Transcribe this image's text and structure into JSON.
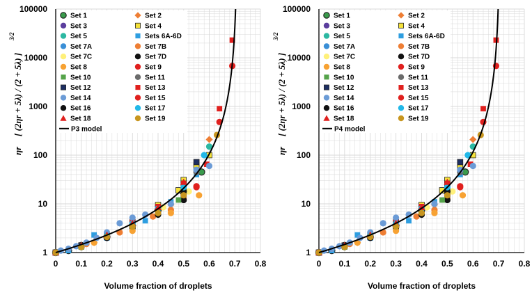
{
  "chart_data": [
    {
      "type": "scatter",
      "xlabel": "Volume fraction of droplets",
      "ylabel_lines": [
        "ηr",
        "[ (2ηr + 5λ) / (2 + 5λ) ]",
        "3/2"
      ],
      "ylabel": "ηr [(2ηr + 5λ)/(2 + 5λ)]^(3/2)",
      "xlim": [
        0,
        0.8
      ],
      "ylim": [
        1,
        100000
      ],
      "yscale": "log",
      "x_tick_labels": [
        "0",
        "0.1",
        "0.2",
        "0.3",
        "0.4",
        "0.5",
        "0.6",
        "0.7",
        "0.8"
      ],
      "y_tick_labels": [
        "1",
        "10",
        "100",
        "1000",
        "10000",
        "100000"
      ],
      "grid": true,
      "legend_location": "top-left",
      "model": {
        "name": "P3 model",
        "max_packing": 0.71,
        "exponent": 2.5
      },
      "series": [
        {
          "name": "Set 1",
          "marker": "circle-outline",
          "color": "#3a9b4c",
          "points": [
            [
              0,
              1
            ],
            [
              0.05,
              1.1
            ],
            [
              0.1,
              1.4
            ],
            [
              0.2,
              2.1
            ],
            [
              0.3,
              3.6
            ],
            [
              0.4,
              7.5
            ],
            [
              0.5,
              17
            ],
            [
              0.57,
              45
            ]
          ]
        },
        {
          "name": "Set 2",
          "marker": "diamond",
          "color": "#ee7e34",
          "points": [
            [
              0,
              1
            ],
            [
              0.15,
              1.6
            ],
            [
              0.3,
              3.3
            ],
            [
              0.45,
              9.5
            ],
            [
              0.6,
              210
            ]
          ]
        },
        {
          "name": "Set 3",
          "marker": "circle",
          "color": "#5b3e9e",
          "points": [
            [
              0,
              1
            ],
            [
              0.1,
              1.3
            ],
            [
              0.2,
              2.0
            ],
            [
              0.3,
              3.5
            ],
            [
              0.4,
              7.2
            ],
            [
              0.5,
              19
            ]
          ]
        },
        {
          "name": "Set 4",
          "marker": "square",
          "color": "#f5e23a",
          "points": [
            [
              0,
              1
            ],
            [
              0.1,
              1.4
            ],
            [
              0.2,
              2.3
            ],
            [
              0.3,
              4.2
            ],
            [
              0.4,
              9.5
            ],
            [
              0.48,
              19
            ],
            [
              0.5,
              31
            ],
            [
              0.55,
              60
            ],
            [
              0.6,
              100
            ]
          ]
        },
        {
          "name": "Set 5",
          "marker": "circle",
          "color": "#2cb8a2",
          "points": [
            [
              0,
              1
            ],
            [
              0.1,
              1.3
            ],
            [
              0.2,
              2.1
            ],
            [
              0.3,
              3.7
            ],
            [
              0.4,
              8.0
            ],
            [
              0.5,
              20
            ],
            [
              0.6,
              150
            ]
          ]
        },
        {
          "name": "Sets 6A-6D",
          "marker": "square",
          "color": "#2e9ee0",
          "points": [
            [
              0,
              1
            ],
            [
              0.05,
              1.1
            ],
            [
              0.1,
              1.3
            ],
            [
              0.15,
              2.3
            ],
            [
              0.2,
              2.0
            ],
            [
              0.3,
              3.4
            ],
            [
              0.35,
              4.5
            ],
            [
              0.4,
              6.8
            ],
            [
              0.45,
              11
            ],
            [
              0.5,
              22
            ],
            [
              0.55,
              40
            ]
          ]
        },
        {
          "name": "Set 7A",
          "marker": "circle",
          "color": "#3a8fd6",
          "points": [
            [
              0,
              1
            ],
            [
              0.1,
              1.3
            ],
            [
              0.2,
              2.0
            ],
            [
              0.3,
              3.3
            ],
            [
              0.4,
              6.5
            ],
            [
              0.5,
              14
            ]
          ]
        },
        {
          "name": "Set 7B",
          "marker": "circle",
          "color": "#ee7e34",
          "points": [
            [
              0,
              1
            ],
            [
              0.12,
              1.5
            ],
            [
              0.25,
              2.6
            ],
            [
              0.38,
              5.5
            ],
            [
              0.45,
              7.5
            ],
            [
              0.5,
              13
            ]
          ]
        },
        {
          "name": "Set 7C",
          "marker": "circle",
          "color": "#fff07a",
          "points": [
            [
              0,
              1
            ],
            [
              0.1,
              1.4
            ],
            [
              0.2,
              2.2
            ],
            [
              0.3,
              3.8
            ],
            [
              0.42,
              8.5
            ],
            [
              0.52,
              18
            ]
          ]
        },
        {
          "name": "Set 7D",
          "marker": "circle",
          "color": "#111111",
          "points": [
            [
              0,
              1
            ],
            [
              0.1,
              1.3
            ],
            [
              0.2,
              2.0
            ],
            [
              0.3,
              3.2
            ],
            [
              0.4,
              6.0
            ],
            [
              0.5,
              12
            ]
          ]
        },
        {
          "name": "Set 8",
          "marker": "circle",
          "color": "#f7a233",
          "points": [
            [
              0,
              1
            ],
            [
              0.15,
              1.6
            ],
            [
              0.3,
              2.8
            ],
            [
              0.45,
              6.5
            ],
            [
              0.56,
              15
            ]
          ]
        },
        {
          "name": "Set 9",
          "marker": "circle",
          "color": "#e0201e",
          "points": [
            [
              0,
              1
            ],
            [
              0.2,
              2.2
            ],
            [
              0.4,
              8.0
            ],
            [
              0.55,
              22
            ],
            [
              0.64,
              480
            ],
            [
              0.69,
              6800
            ]
          ]
        },
        {
          "name": "Set 10",
          "marker": "square",
          "color": "#55a34a",
          "points": [
            [
              0,
              1
            ],
            [
              0.1,
              1.3
            ],
            [
              0.2,
              2.2
            ],
            [
              0.3,
              3.6
            ],
            [
              0.4,
              7.0
            ],
            [
              0.48,
              12
            ]
          ]
        },
        {
          "name": "Set 11",
          "marker": "circle",
          "color": "#6b6b6b",
          "points": [
            [
              0,
              1
            ],
            [
              0.1,
              1.3
            ],
            [
              0.2,
              2.1
            ],
            [
              0.3,
              3.5
            ],
            [
              0.4,
              7.5
            ],
            [
              0.5,
              20
            ],
            [
              0.55,
              45
            ]
          ]
        },
        {
          "name": "Set 12",
          "marker": "square",
          "color": "#1e2f63",
          "points": [
            [
              0,
              1
            ],
            [
              0.1,
              1.4
            ],
            [
              0.2,
              2.1
            ],
            [
              0.3,
              3.9
            ],
            [
              0.4,
              8.2
            ],
            [
              0.5,
              26
            ],
            [
              0.55,
              72
            ]
          ]
        },
        {
          "name": "Set 13",
          "marker": "square",
          "color": "#e0201e",
          "points": [
            [
              0,
              1
            ],
            [
              0.2,
              2.4
            ],
            [
              0.3,
              4.3
            ],
            [
              0.4,
              8.8
            ],
            [
              0.5,
              26
            ],
            [
              0.59,
              65
            ],
            [
              0.64,
              900
            ],
            [
              0.69,
              23000
            ]
          ]
        },
        {
          "name": "Set 14",
          "marker": "circle",
          "color": "#6b9bd6",
          "points": [
            [
              0.02,
              1.1
            ],
            [
              0.05,
              1.2
            ],
            [
              0.08,
              1.35
            ],
            [
              0.12,
              1.6
            ],
            [
              0.16,
              2.0
            ],
            [
              0.2,
              2.6
            ],
            [
              0.25,
              4.0
            ],
            [
              0.3,
              5.2
            ],
            [
              0.35,
              6.0
            ],
            [
              0.4,
              8.0
            ],
            [
              0.45,
              10
            ],
            [
              0.5,
              18
            ],
            [
              0.55,
              50
            ],
            [
              0.6,
              60
            ]
          ]
        },
        {
          "name": "Set 15",
          "marker": "circle",
          "color": "#e0201e",
          "points": [
            [
              0,
              1
            ],
            [
              0.2,
              2.2
            ],
            [
              0.4,
              7.8
            ],
            [
              0.55,
              23
            ]
          ]
        },
        {
          "name": "Set 16",
          "marker": "circle",
          "color": "#111111",
          "points": [
            [
              0,
              1
            ],
            [
              0.1,
              1.3
            ],
            [
              0.2,
              2.1
            ],
            [
              0.3,
              3.6
            ],
            [
              0.4,
              7.0
            ],
            [
              0.5,
              18
            ]
          ]
        },
        {
          "name": "Set 17",
          "marker": "circle",
          "color": "#22b8e8",
          "points": [
            [
              0,
              1
            ],
            [
              0.1,
              1.3
            ],
            [
              0.2,
              2.2
            ],
            [
              0.3,
              3.9
            ],
            [
              0.4,
              8.0
            ],
            [
              0.5,
              22
            ],
            [
              0.58,
              100
            ]
          ]
        },
        {
          "name": "Set 18",
          "marker": "triangle",
          "color": "#e0201e",
          "points": [
            [
              0,
              1
            ],
            [
              0.1,
              1.4
            ],
            [
              0.2,
              2.3
            ],
            [
              0.3,
              4.0
            ],
            [
              0.4,
              8.5
            ],
            [
              0.5,
              28
            ]
          ]
        },
        {
          "name": "Set 19",
          "marker": "circle",
          "color": "#c8961f",
          "points": [
            [
              0,
              1
            ],
            [
              0.1,
              1.3
            ],
            [
              0.2,
              2.1
            ],
            [
              0.3,
              3.4
            ],
            [
              0.4,
              6.5
            ],
            [
              0.5,
              15
            ],
            [
              0.63,
              260
            ]
          ]
        }
      ]
    },
    {
      "type": "scatter",
      "xlabel": "Volume fraction of droplets",
      "ylabel_lines": [
        "ηr",
        "[ (2ηr + 5λ) / (2 + 5λ) ]",
        "3/2"
      ],
      "ylabel": "ηr [(2ηr + 5λ)/(2 + 5λ)]^(3/2)",
      "xlim": [
        0,
        0.8
      ],
      "ylim": [
        1,
        100000
      ],
      "yscale": "log",
      "x_tick_labels": [
        "0",
        "0.1",
        "0.2",
        "0.3",
        "0.4",
        "0.5",
        "0.6",
        "0.7",
        "0.8"
      ],
      "y_tick_labels": [
        "1",
        "10",
        "100",
        "1000",
        "10000",
        "100000"
      ],
      "grid": true,
      "legend_location": "top-left",
      "model": {
        "name": "P4 model",
        "max_packing": 0.705,
        "exponent": 2.5
      },
      "series_ref": "same data sets as first panel"
    }
  ],
  "colors": {
    "grid": "#d9d9d9",
    "model_line": "#000000"
  }
}
